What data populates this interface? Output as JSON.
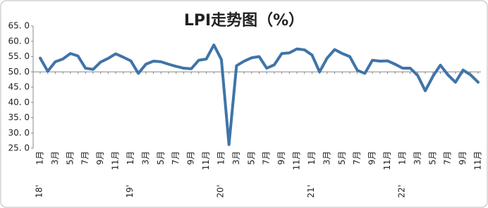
{
  "chart_data": {
    "type": "line",
    "title": "LPI走势图（%）",
    "categories": [
      "1月",
      null,
      "3月",
      null,
      "5月",
      null,
      "7月",
      null,
      "9月",
      null,
      "11月",
      null,
      "1月",
      null,
      "3月",
      null,
      "5月",
      null,
      "7月",
      null,
      "9月",
      null,
      "11月",
      null,
      "1月",
      null,
      "3月",
      null,
      "5月",
      null,
      "7月",
      null,
      "9月",
      null,
      "11月",
      null,
      "1月",
      null,
      "3月",
      null,
      "5月",
      null,
      "7月",
      null,
      "9月",
      null,
      "11月",
      null,
      "1月",
      null,
      "3月",
      null,
      "5月",
      null,
      "7月",
      null,
      "9月",
      null,
      "11月"
    ],
    "year_labels": [
      "18'",
      null,
      null,
      null,
      null,
      null,
      null,
      null,
      null,
      null,
      null,
      null,
      "19'",
      null,
      null,
      null,
      null,
      null,
      null,
      null,
      null,
      null,
      null,
      null,
      "20'",
      null,
      null,
      null,
      null,
      null,
      null,
      null,
      null,
      null,
      null,
      null,
      "21'",
      null,
      null,
      null,
      null,
      null,
      null,
      null,
      null,
      null,
      null,
      null,
      "22'",
      null,
      null,
      null,
      null,
      null,
      null,
      null,
      null,
      null,
      null
    ],
    "series": [
      {
        "name": "LPI",
        "color": "#3f74a8",
        "values": [
          54.5,
          50.2,
          53.3,
          54.2,
          56.0,
          55.2,
          51.2,
          50.8,
          53.2,
          54.4,
          55.9,
          54.8,
          53.6,
          49.5,
          52.5,
          53.5,
          53.3,
          52.5,
          51.8,
          51.2,
          51.0,
          53.8,
          54.2,
          58.8,
          54.0,
          26.2,
          52.0,
          53.5,
          54.6,
          55.0,
          51.2,
          52.3,
          56.0,
          56.2,
          57.5,
          57.2,
          55.5,
          50.0,
          54.5,
          57.3,
          56.0,
          55.0,
          50.5,
          49.5,
          53.8,
          53.5,
          53.6,
          52.5,
          51.2,
          51.2,
          48.8,
          43.8,
          48.5,
          52.2,
          49.0,
          46.6,
          50.6,
          49.0,
          46.6
        ]
      }
    ],
    "ylim": [
      25,
      65
    ],
    "yticks": [
      {
        "value": 25,
        "label": "25. 0"
      },
      {
        "value": 30,
        "label": "30. 0"
      },
      {
        "value": 35,
        "label": "35. 0"
      },
      {
        "value": 40,
        "label": "40. 0"
      },
      {
        "value": 45,
        "label": "45. 0"
      },
      {
        "value": 50,
        "label": "50. 0"
      },
      {
        "value": 55,
        "label": "55. 0"
      },
      {
        "value": 60,
        "label": "60. 0"
      },
      {
        "value": 65,
        "label": "65. 0"
      }
    ],
    "x_axis_at": 50
  }
}
